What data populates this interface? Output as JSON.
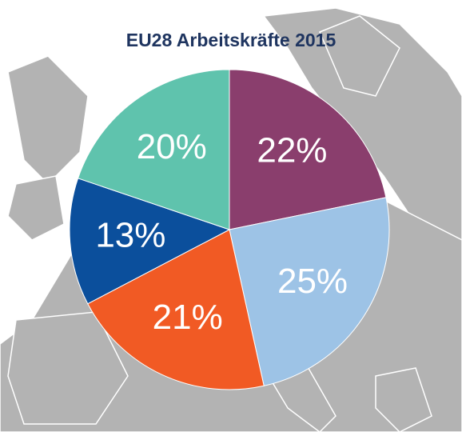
{
  "chart_data": {
    "type": "pie",
    "title": "EU28 Arbeitskräfte 2015",
    "values": [
      22,
      25,
      21,
      13,
      20
    ],
    "value_labels": [
      "22%",
      "25%",
      "21%",
      "13%",
      "20%"
    ],
    "colors": [
      "#8a3e6d",
      "#9dc3e6",
      "#f15a24",
      "#0b4f9c",
      "#5fc3ad"
    ]
  }
}
